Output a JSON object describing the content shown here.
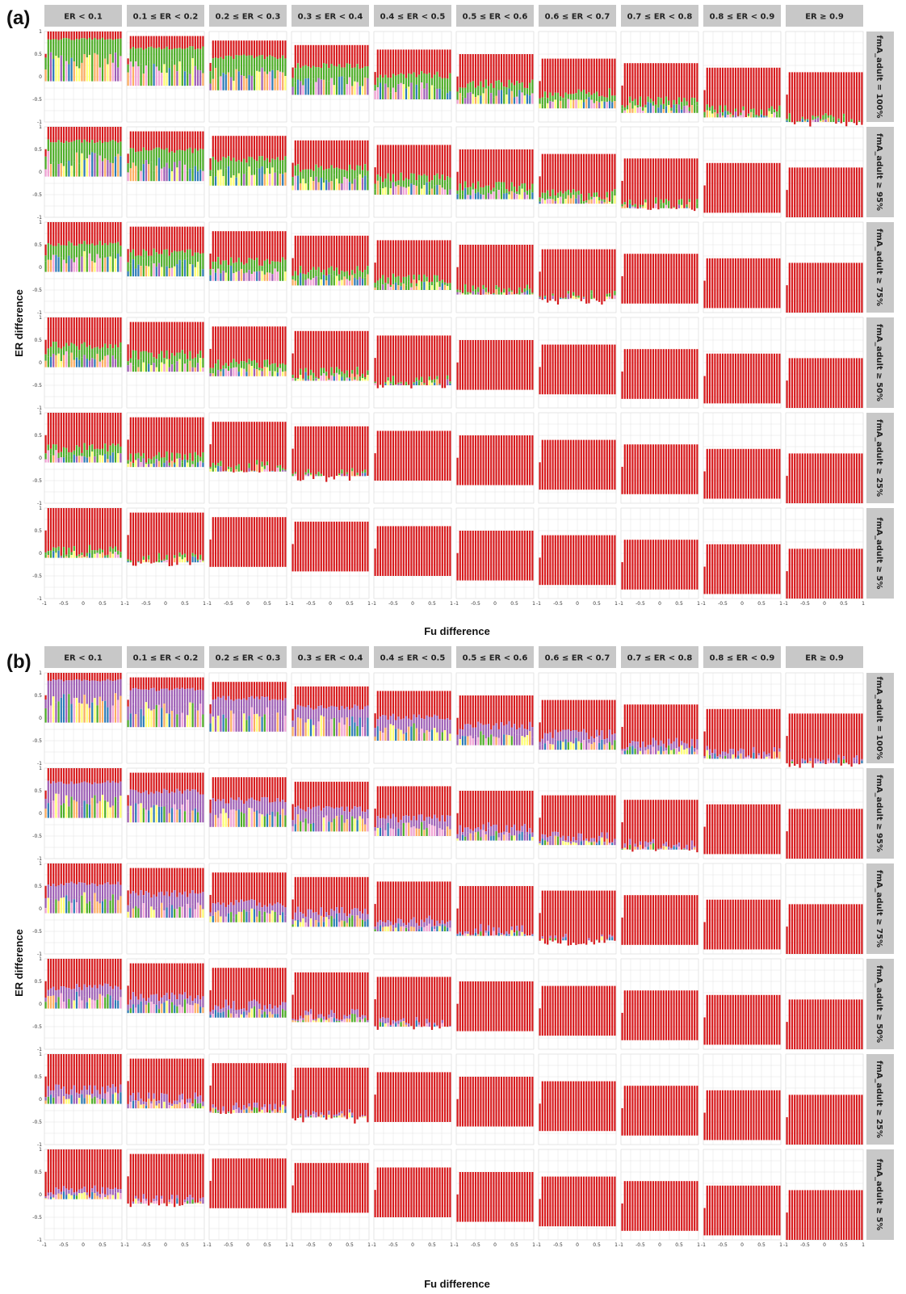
{
  "colors": {
    "red": "#d7191c",
    "green": "#4dac26",
    "blue": "#2c7bb6",
    "orange": "#fdae61",
    "purple": "#9e5fb5",
    "pink": "#f1a3d4",
    "yellow": "#ffff73",
    "strip": "#c8c8c8",
    "panel_bg": "#ffffff",
    "grid": "#e2e2e2"
  },
  "chart_data": [
    {
      "type": "scatter",
      "panel_label": "(a)",
      "xlabel": "Fu difference",
      "ylabel": "ER difference",
      "xlim": [
        -1,
        1
      ],
      "ylim": [
        -1,
        1
      ],
      "x_ticks": [
        "-1",
        "-0.5",
        "0",
        "0.5",
        "1"
      ],
      "y_ticks": [
        "1",
        "0.5",
        "0",
        "-0.5",
        "-1"
      ],
      "columns": [
        "ER < 0.1",
        "0.1 ≤ ER < 0.2",
        "0.2 ≤ ER < 0.3",
        "0.3 ≤ ER < 0.4",
        "0.4 ≤ ER < 0.5",
        "0.5 ≤ ER < 0.6",
        "0.6 ≤ ER < 0.7",
        "0.7 ≤ ER < 0.8",
        "0.8 ≤ ER < 0.9",
        "ER ≥ 0.9"
      ],
      "rows": [
        "fmA_adult = 100%",
        "fmA_adult ≥ 95%",
        "fmA_adult ≥ 75%",
        "fmA_adult ≥ 50%",
        "fmA_adult ≥ 25%",
        "fmA_adult ≥ 5%"
      ]
    },
    {
      "type": "scatter",
      "panel_label": "(b)",
      "xlabel": "Fu difference",
      "ylabel": "ER difference",
      "xlim": [
        -1,
        1
      ],
      "ylim": [
        -1,
        1
      ],
      "x_ticks": [
        "-1",
        "-0.5",
        "0",
        "0.5",
        "1"
      ],
      "y_ticks": [
        "1",
        "0.5",
        "0",
        "-0.5",
        "-1"
      ],
      "columns": [
        "ER < 0.1",
        "0.1 ≤ ER < 0.2",
        "0.2 ≤ ER < 0.3",
        "0.3 ≤ ER < 0.4",
        "0.4 ≤ ER < 0.5",
        "0.5 ≤ ER < 0.6",
        "0.6 ≤ ER < 0.7",
        "0.7 ≤ ER < 0.8",
        "0.8 ≤ ER < 0.9",
        "ER ≥ 0.9"
      ],
      "rows": [
        "fmA_adult = 100%",
        "fmA_adult ≥ 95%",
        "fmA_adult ≥ 75%",
        "fmA_adult ≥ 50%",
        "fmA_adult ≥ 25%",
        "fmA_adult ≥ 5%"
      ]
    }
  ]
}
